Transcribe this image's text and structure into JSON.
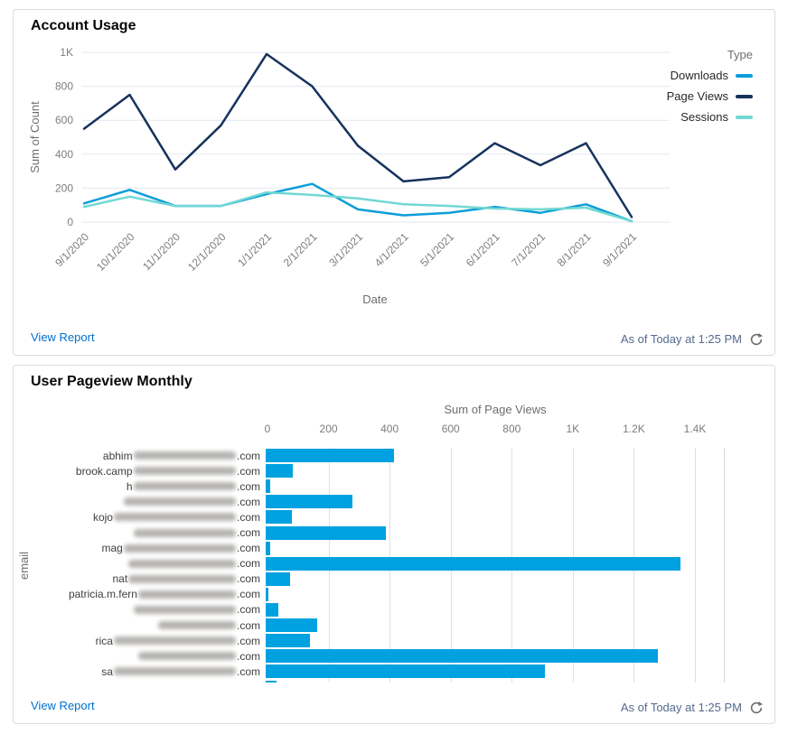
{
  "cards": {
    "account_usage": {
      "title": "Account Usage",
      "view_report_label": "View Report",
      "as_of_label": "As of Today at 1:25 PM"
    },
    "user_pageview": {
      "title": "User Pageview Monthly",
      "view_report_label": "View Report",
      "as_of_label": "As of Today at 1:25 PM"
    }
  },
  "colors": {
    "link": "#0070d2",
    "as_of_text": "#54698d",
    "axis_text": "#7d7d7d",
    "line_grid": "#e2e9f0",
    "bar_grid": "#e0e0e0",
    "card_border": "#dddbda",
    "title_text": "#080707",
    "bar_fill": "#00a1e0",
    "downloads_line": "#0d9dd9",
    "page_views_line": "#16325c",
    "sessions_line": "#72d8d4"
  },
  "icons": [
    "refresh-icon"
  ],
  "chart_data": [
    {
      "type": "line",
      "title": "Account Usage",
      "xlabel": "Date",
      "ylabel": "Sum of Count",
      "ylim": [
        0,
        1000
      ],
      "grid": "horizontal",
      "legend_title": "Type",
      "legend_position": "top-right",
      "x": [
        "9/1/2020",
        "10/1/2020",
        "11/1/2020",
        "12/1/2020",
        "1/1/2021",
        "2/1/2021",
        "3/1/2021",
        "4/1/2021",
        "5/1/2021",
        "6/1/2021",
        "7/1/2021",
        "8/1/2021",
        "9/1/2021"
      ],
      "yticks": [
        {
          "v": 0,
          "label": "0"
        },
        {
          "v": 200,
          "label": "200"
        },
        {
          "v": 400,
          "label": "400"
        },
        {
          "v": 600,
          "label": "600"
        },
        {
          "v": 800,
          "label": "800"
        },
        {
          "v": 1000,
          "label": "1K"
        }
      ],
      "series": [
        {
          "name": "Downloads",
          "color": "#0d9dd9",
          "values": [
            110,
            190,
            95,
            95,
            165,
            225,
            75,
            40,
            55,
            90,
            55,
            105,
            5
          ]
        },
        {
          "name": "Page Views",
          "color": "#16325c",
          "values": [
            550,
            750,
            310,
            570,
            990,
            800,
            450,
            240,
            265,
            465,
            335,
            465,
            30
          ]
        },
        {
          "name": "Sessions",
          "color": "#72d8d4",
          "values": [
            90,
            150,
            95,
            95,
            175,
            160,
            140,
            105,
            95,
            80,
            75,
            85,
            5
          ]
        }
      ]
    },
    {
      "type": "bar",
      "orientation": "horizontal",
      "title": "User Pageview Monthly",
      "xlabel": "Sum of Page Views",
      "ylabel": "email",
      "xlim": [
        0,
        1500
      ],
      "grid": "vertical",
      "bar_color": "#00a1e0",
      "xticks": [
        {
          "v": 0,
          "label": "0"
        },
        {
          "v": 200,
          "label": "200"
        },
        {
          "v": 400,
          "label": "400"
        },
        {
          "v": 600,
          "label": "600"
        },
        {
          "v": 800,
          "label": "800"
        },
        {
          "v": 1000,
          "label": "1K"
        },
        {
          "v": 1200,
          "label": "1.2K"
        },
        {
          "v": 1400,
          "label": "1.4K"
        }
      ],
      "categories": [
        {
          "visible_prefix": "abhim",
          "redacted_chars": 21,
          "visible_suffix": ".com"
        },
        {
          "visible_prefix": "brook.camp",
          "redacted_chars": 21,
          "visible_suffix": ".com"
        },
        {
          "visible_prefix": "h",
          "redacted_chars": 21,
          "visible_suffix": ".com"
        },
        {
          "visible_prefix": "",
          "redacted_chars": 23,
          "visible_suffix": ".com"
        },
        {
          "visible_prefix": "kojo",
          "redacted_chars": 25,
          "visible_suffix": ".com"
        },
        {
          "visible_prefix": "",
          "redacted_chars": 21,
          "visible_suffix": ".com"
        },
        {
          "visible_prefix": "mag",
          "redacted_chars": 23,
          "visible_suffix": ".com"
        },
        {
          "visible_prefix": "",
          "redacted_chars": 22,
          "visible_suffix": ".com"
        },
        {
          "visible_prefix": "nat",
          "redacted_chars": 22,
          "visible_suffix": ".com"
        },
        {
          "visible_prefix": "patricia.m.fern",
          "redacted_chars": 20,
          "visible_suffix": ".com"
        },
        {
          "visible_prefix": "",
          "redacted_chars": 21,
          "visible_suffix": ".com"
        },
        {
          "visible_prefix": "",
          "redacted_chars": 16,
          "visible_suffix": ".com"
        },
        {
          "visible_prefix": "rica",
          "redacted_chars": 25,
          "visible_suffix": ".com"
        },
        {
          "visible_prefix": "",
          "redacted_chars": 20,
          "visible_suffix": ".com"
        },
        {
          "visible_prefix": "sa",
          "redacted_chars": 25,
          "visible_suffix": ".com"
        }
      ],
      "values": [
        420,
        90,
        15,
        285,
        85,
        395,
        15,
        1360,
        80,
        10,
        40,
        170,
        145,
        1285,
        915
      ],
      "clipped_bar_value": 35
    }
  ]
}
